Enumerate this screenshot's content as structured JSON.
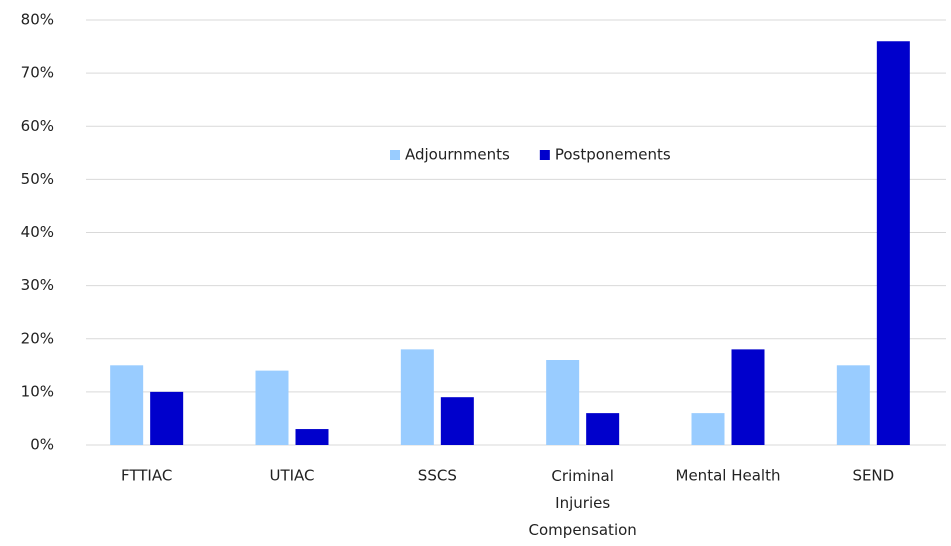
{
  "chart_data": {
    "type": "bar",
    "categories": [
      "FTTIAC",
      "UTIAC",
      "SSCS",
      "Criminal Injuries Compensation",
      "Mental Health",
      "SEND"
    ],
    "series": [
      {
        "name": "Adjournments",
        "color": "#99ccff",
        "values": [
          15,
          14,
          18,
          16,
          6,
          15
        ]
      },
      {
        "name": "Postponements",
        "color": "#0000cc",
        "values": [
          10,
          3,
          9,
          6,
          18,
          76
        ]
      }
    ],
    "ylim": [
      0,
      80
    ],
    "yticks": [
      {
        "value": 0,
        "label": "0%"
      },
      {
        "value": 10,
        "label": "10%"
      },
      {
        "value": 20,
        "label": "20%"
      },
      {
        "value": 30,
        "label": "30%"
      },
      {
        "value": 40,
        "label": "40%"
      },
      {
        "value": 50,
        "label": "50%"
      },
      {
        "value": 60,
        "label": "60%"
      },
      {
        "value": 70,
        "label": "70%"
      },
      {
        "value": 80,
        "label": "80%"
      }
    ],
    "grid": true,
    "legend": "center"
  }
}
